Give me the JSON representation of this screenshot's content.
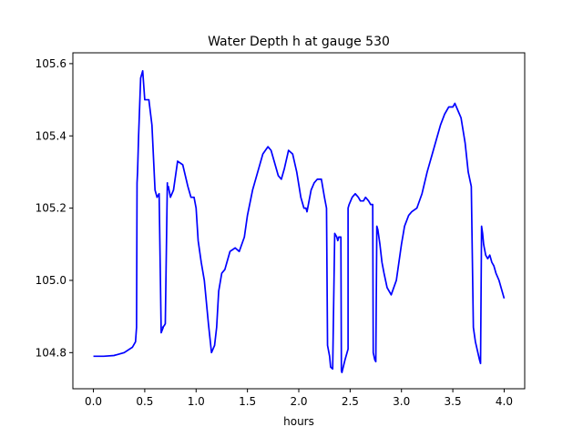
{
  "chart_data": {
    "type": "line",
    "title": "Water Depth h at gauge 530",
    "xlabel": "hours",
    "ylabel": "",
    "xlim": [
      -0.2,
      4.2
    ],
    "ylim": [
      104.7,
      105.63
    ],
    "xticks": [
      0.0,
      0.5,
      1.0,
      1.5,
      2.0,
      2.5,
      3.0,
      3.5,
      4.0
    ],
    "xtick_labels": [
      "0.0",
      "0.5",
      "1.0",
      "1.5",
      "2.0",
      "2.5",
      "3.0",
      "3.5",
      "4.0"
    ],
    "yticks": [
      104.8,
      105.0,
      105.2,
      105.4,
      105.6
    ],
    "ytick_labels": [
      "104.8",
      "105.0",
      "105.2",
      "105.4",
      "105.6"
    ],
    "grid": false,
    "series": [
      {
        "color": "#0000ff",
        "x": [
          0.0,
          0.1,
          0.2,
          0.3,
          0.38,
          0.41,
          0.42,
          0.425,
          0.43,
          0.44,
          0.46,
          0.48,
          0.5,
          0.52,
          0.54,
          0.57,
          0.6,
          0.62,
          0.64,
          0.66,
          0.68,
          0.675,
          0.69,
          0.7,
          0.72,
          0.72,
          0.73,
          0.75,
          0.78,
          0.82,
          0.87,
          0.92,
          0.95,
          0.98,
          1.0,
          1.02,
          1.05,
          1.08,
          1.12,
          1.15,
          1.18,
          1.2,
          1.22,
          1.25,
          1.28,
          1.3,
          1.33,
          1.38,
          1.42,
          1.47,
          1.5,
          1.55,
          1.6,
          1.65,
          1.7,
          1.73,
          1.76,
          1.8,
          1.83,
          1.86,
          1.9,
          1.94,
          1.98,
          2.02,
          2.05,
          2.07,
          2.08,
          2.1,
          2.12,
          2.15,
          2.18,
          2.22,
          2.25,
          2.27,
          2.28,
          2.3,
          2.31,
          2.33,
          2.35,
          2.37,
          2.38,
          2.39,
          2.4,
          2.41,
          2.415,
          2.42,
          2.45,
          2.48,
          2.48,
          2.49,
          2.52,
          2.55,
          2.58,
          2.6,
          2.63,
          2.65,
          2.68,
          2.7,
          2.72,
          2.725,
          2.74,
          2.75,
          2.76,
          2.77,
          2.79,
          2.81,
          2.83,
          2.86,
          2.9,
          2.95,
          3.0,
          3.03,
          3.07,
          3.1,
          3.15,
          3.2,
          3.25,
          3.3,
          3.35,
          3.38,
          3.42,
          3.46,
          3.5,
          3.52,
          3.55,
          3.58,
          3.62,
          3.65,
          3.68,
          3.7,
          3.71,
          3.72,
          3.76,
          3.77,
          3.78,
          3.79,
          3.8,
          3.82,
          3.84,
          3.86,
          3.88,
          3.9,
          3.92,
          3.95,
          3.98,
          4.0
        ],
        "y": [
          104.79,
          104.79,
          104.792,
          104.8,
          104.815,
          104.83,
          104.87,
          105.27,
          105.3,
          105.4,
          105.56,
          105.58,
          105.5,
          105.5,
          105.5,
          105.43,
          105.25,
          105.23,
          105.24,
          104.855,
          104.87,
          104.87,
          104.875,
          104.88,
          105.27,
          105.25,
          105.26,
          105.23,
          105.25,
          105.33,
          105.32,
          105.26,
          105.23,
          105.23,
          105.2,
          105.11,
          105.05,
          105.0,
          104.88,
          104.8,
          104.82,
          104.87,
          104.97,
          105.02,
          105.03,
          105.05,
          105.08,
          105.09,
          105.08,
          105.12,
          105.18,
          105.25,
          105.3,
          105.35,
          105.37,
          105.36,
          105.33,
          105.29,
          105.28,
          105.31,
          105.36,
          105.35,
          105.3,
          105.23,
          105.2,
          105.2,
          105.19,
          105.22,
          105.25,
          105.27,
          105.28,
          105.28,
          105.23,
          105.2,
          104.82,
          104.79,
          104.76,
          104.755,
          105.13,
          105.12,
          105.11,
          105.12,
          105.12,
          105.12,
          104.75,
          104.745,
          104.78,
          104.81,
          105.2,
          105.21,
          105.23,
          105.24,
          105.23,
          105.22,
          105.22,
          105.23,
          105.22,
          105.21,
          105.21,
          104.8,
          104.78,
          104.775,
          105.15,
          105.14,
          105.1,
          105.05,
          105.02,
          104.98,
          104.96,
          105.0,
          105.1,
          105.15,
          105.18,
          105.19,
          105.2,
          105.24,
          105.3,
          105.35,
          105.4,
          105.43,
          105.46,
          105.48,
          105.48,
          105.49,
          105.47,
          105.45,
          105.38,
          105.3,
          105.26,
          104.87,
          104.85,
          104.83,
          104.78,
          104.77,
          105.15,
          105.13,
          105.1,
          105.07,
          105.06,
          105.07,
          105.05,
          105.04,
          105.02,
          105.0,
          104.97,
          104.95
        ]
      }
    ]
  }
}
